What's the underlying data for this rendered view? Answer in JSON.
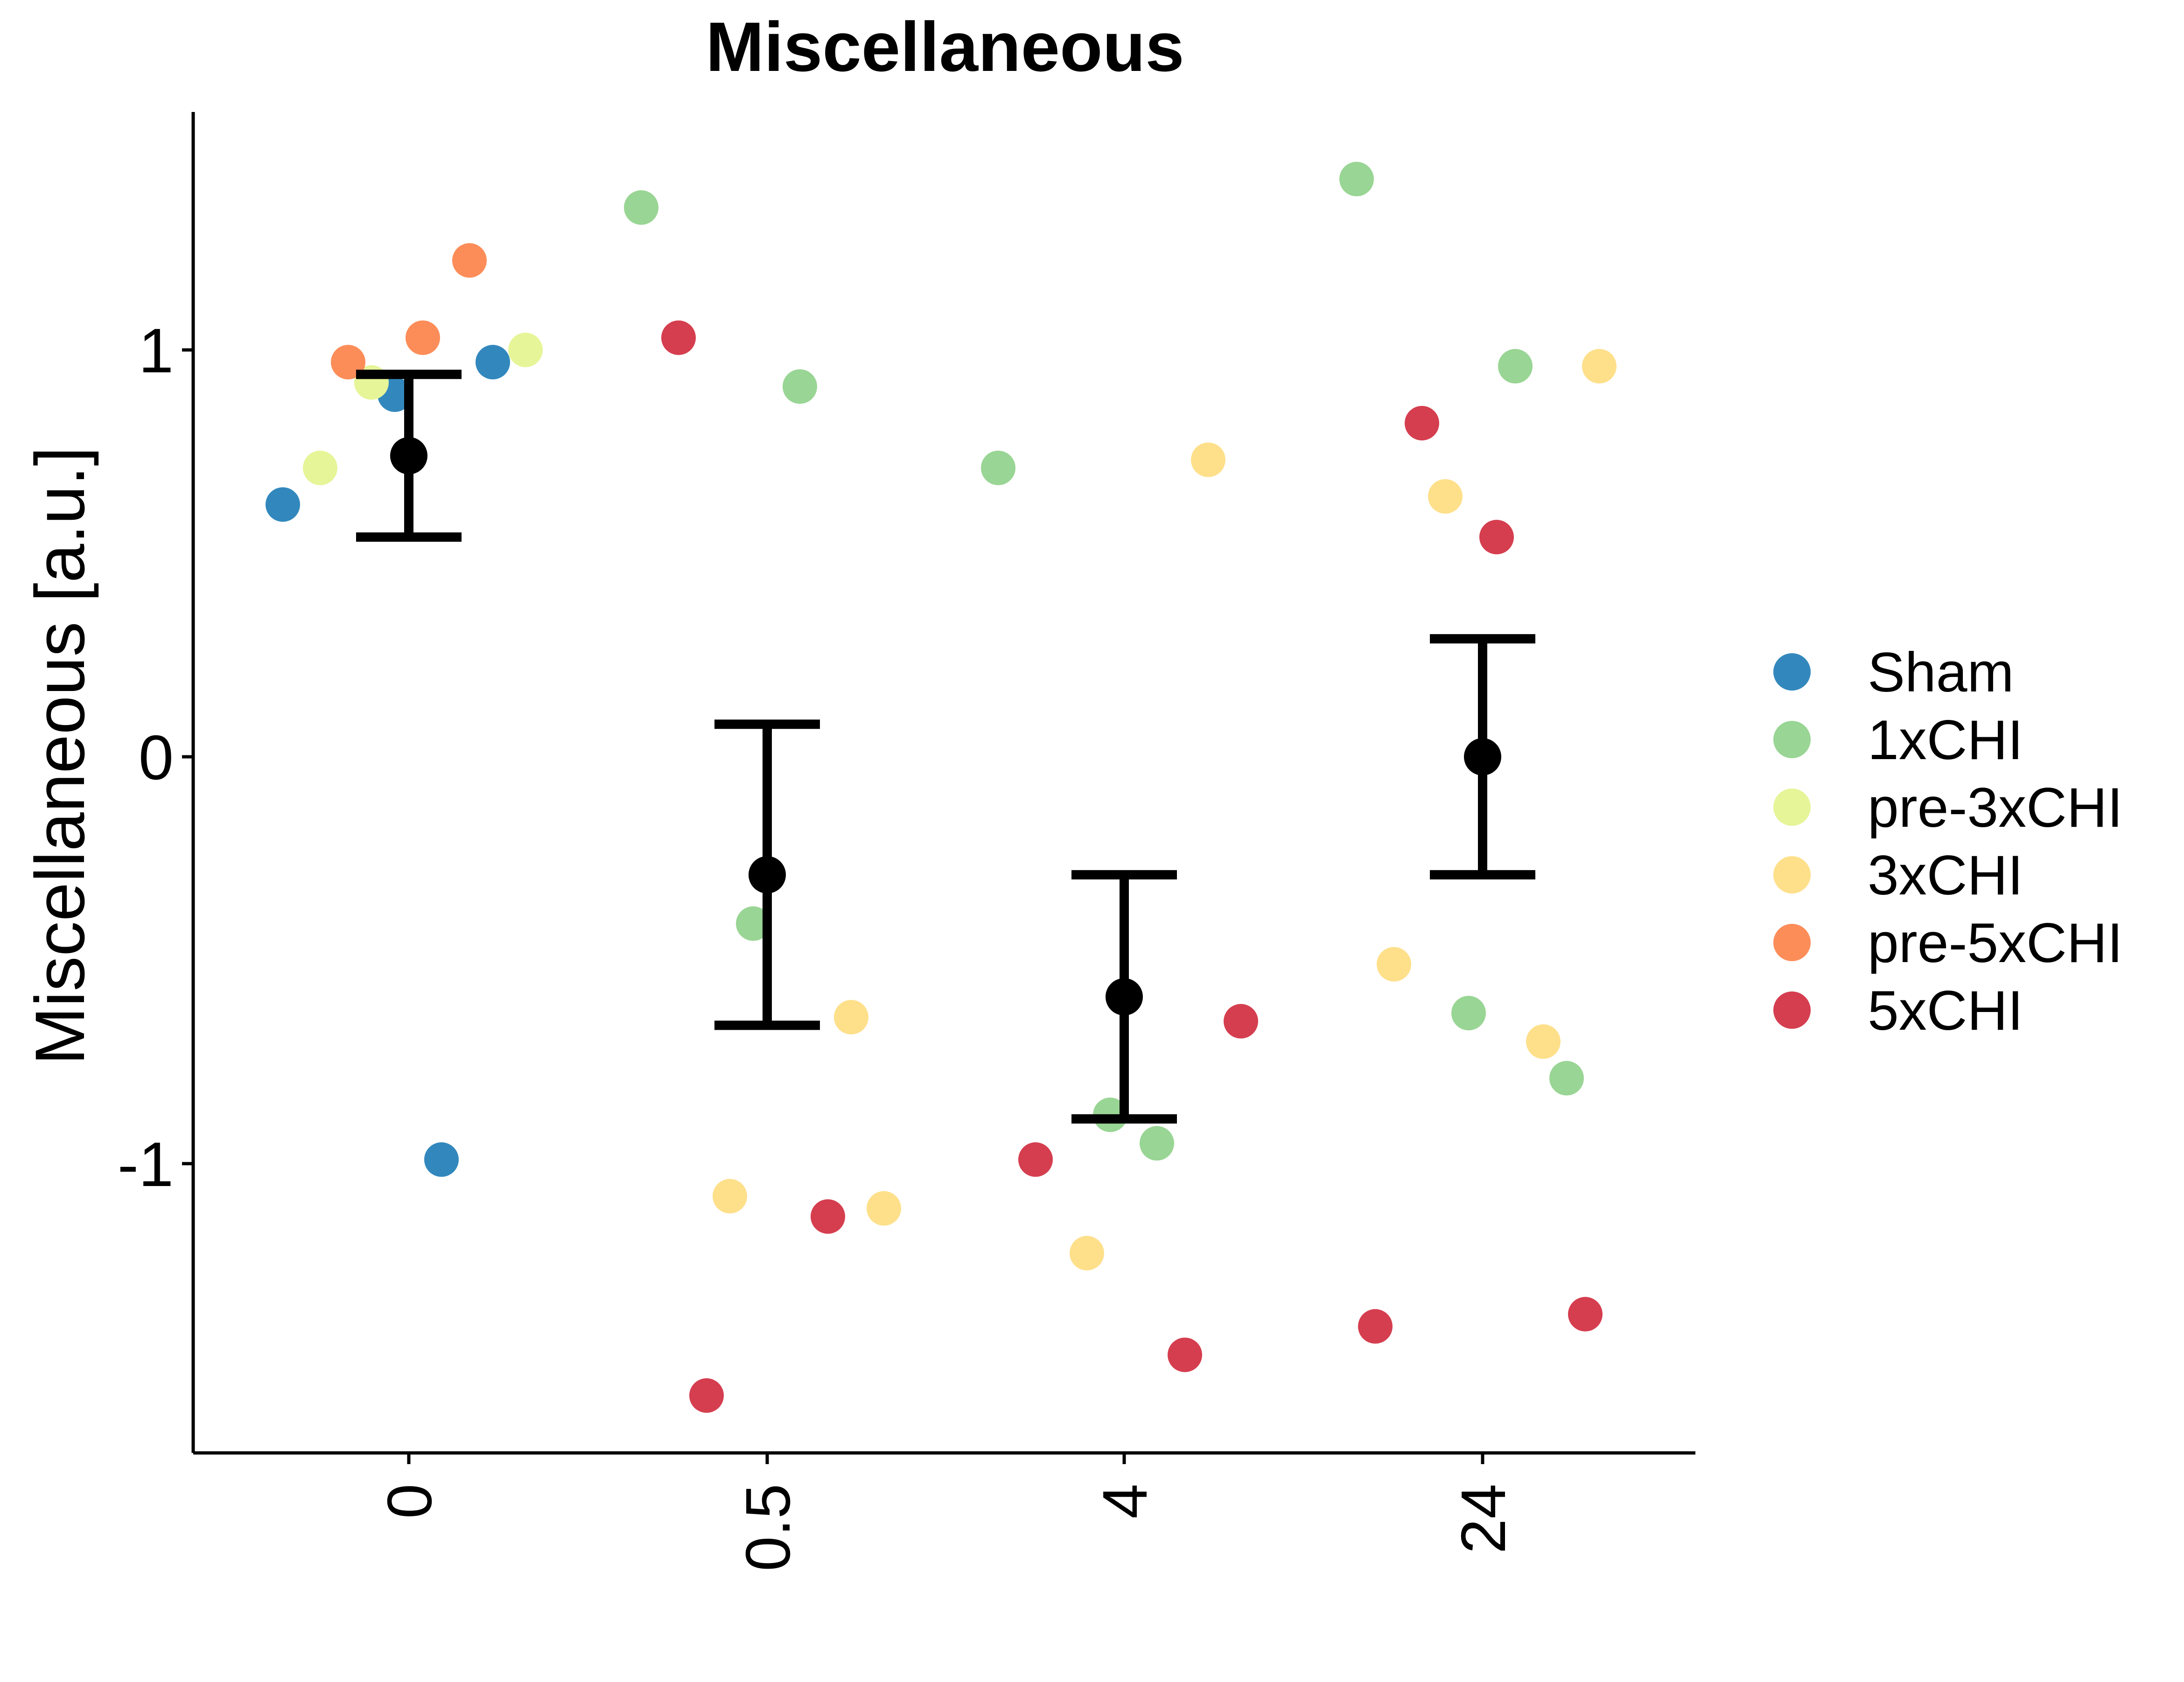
{
  "chart_data": {
    "type": "scatter",
    "title": "Miscellaneous",
    "ylabel": "Miscellaneous [a.u.]",
    "xlabel": "",
    "categories": [
      "0",
      "0.5",
      "4",
      "24"
    ],
    "y_ticks": [
      "1",
      "0",
      "-1"
    ],
    "y_tick_values": [
      1,
      0,
      -1
    ],
    "ylim": [
      -1.72,
      1.57
    ],
    "grid": false,
    "legend_position": "right",
    "series": [
      {
        "name": "Sham",
        "color": "#3288bd",
        "points": [
          {
            "x": "0",
            "value": 0.62
          },
          {
            "x": "0",
            "value": -0.99
          },
          {
            "x": "0",
            "value": 0.89
          },
          {
            "x": "0",
            "value": 0.97
          }
        ]
      },
      {
        "name": "1xCHI",
        "color": "#99d594",
        "points": [
          {
            "x": "0.5",
            "value": 1.35
          },
          {
            "x": "0.5",
            "value": 0.91
          },
          {
            "x": "0.5",
            "value": -0.41
          },
          {
            "x": "4",
            "value": 0.71
          },
          {
            "x": "4",
            "value": -0.95
          },
          {
            "x": "4",
            "value": -0.88
          },
          {
            "x": "24",
            "value": 1.42
          },
          {
            "x": "24",
            "value": 0.96
          },
          {
            "x": "24",
            "value": -0.63
          },
          {
            "x": "24",
            "value": -0.79
          }
        ]
      },
      {
        "name": "pre-3xCHI",
        "color": "#e6f598",
        "points": [
          {
            "x": "0",
            "value": 0.92
          },
          {
            "x": "0",
            "value": 1.0
          },
          {
            "x": "0",
            "value": 0.71
          }
        ]
      },
      {
        "name": "3xCHI",
        "color": "#fee08b",
        "points": [
          {
            "x": "0.5",
            "value": -0.64
          },
          {
            "x": "0.5",
            "value": -1.08
          },
          {
            "x": "0.5",
            "value": -1.11
          },
          {
            "x": "4",
            "value": 0.73
          },
          {
            "x": "4",
            "value": -1.22
          },
          {
            "x": "24",
            "value": 0.64
          },
          {
            "x": "24",
            "value": 0.96
          },
          {
            "x": "24",
            "value": -0.51
          },
          {
            "x": "24",
            "value": -0.7
          }
        ]
      },
      {
        "name": "pre-5xCHI",
        "color": "#fc8d59",
        "points": [
          {
            "x": "0",
            "value": 1.22
          },
          {
            "x": "0",
            "value": 0.97
          },
          {
            "x": "0",
            "value": 1.03
          }
        ]
      },
      {
        "name": "5xCHI",
        "color": "#d53e4f",
        "points": [
          {
            "x": "0.5",
            "value": 1.03
          },
          {
            "x": "0.5",
            "value": -1.13
          },
          {
            "x": "0.5",
            "value": -1.57
          },
          {
            "x": "4",
            "value": -0.65
          },
          {
            "x": "4",
            "value": -0.99
          },
          {
            "x": "4",
            "value": -1.47
          },
          {
            "x": "24",
            "value": 0.82
          },
          {
            "x": "24",
            "value": 0.54
          },
          {
            "x": "24",
            "value": -1.37
          },
          {
            "x": "24",
            "value": -1.4
          }
        ]
      }
    ],
    "summary": [
      {
        "x": "0",
        "mean": 0.74,
        "lower": 0.54,
        "upper": 0.94
      },
      {
        "x": "0.5",
        "mean": -0.29,
        "lower": -0.66,
        "upper": 0.08
      },
      {
        "x": "4",
        "mean": -0.59,
        "lower": -0.89,
        "upper": -0.29
      },
      {
        "x": "24",
        "mean": 0.0,
        "lower": -0.29,
        "upper": 0.29
      }
    ],
    "summary_color": "#000000"
  }
}
